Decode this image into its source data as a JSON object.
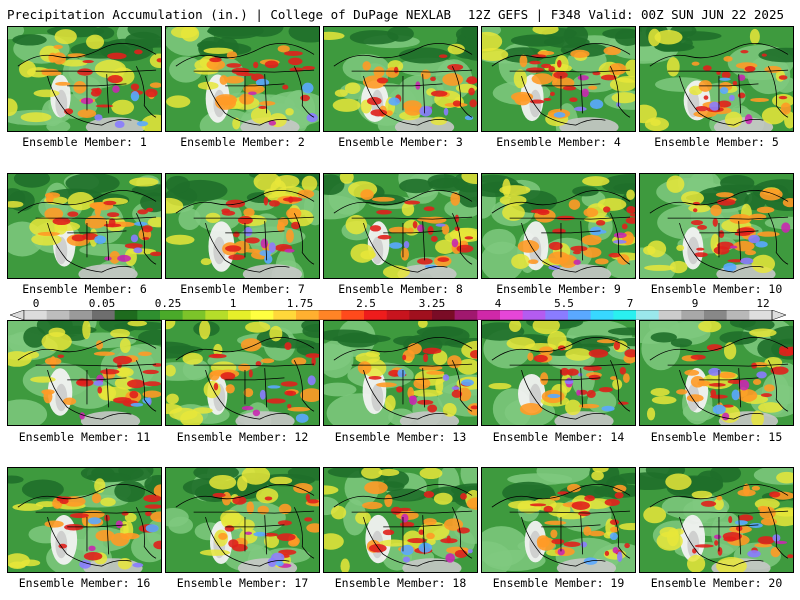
{
  "header": {
    "title": "Precipitation Accumulation (in.) | College of DuPage NEXLAB",
    "run_info": "12Z GEFS | F348 Valid: 00Z SUN JUN 22 2025"
  },
  "panels": [
    {
      "member": 1,
      "label": "Ensemble Member: 1"
    },
    {
      "member": 2,
      "label": "Ensemble Member: 2"
    },
    {
      "member": 3,
      "label": "Ensemble Member: 3"
    },
    {
      "member": 4,
      "label": "Ensemble Member: 4"
    },
    {
      "member": 5,
      "label": "Ensemble Member: 5"
    },
    {
      "member": 6,
      "label": "Ensemble Member: 6"
    },
    {
      "member": 7,
      "label": "Ensemble Member: 7"
    },
    {
      "member": 8,
      "label": "Ensemble Member: 8"
    },
    {
      "member": 9,
      "label": "Ensemble Member: 9"
    },
    {
      "member": 10,
      "label": "Ensemble Member: 10"
    },
    {
      "member": 11,
      "label": "Ensemble Member: 11"
    },
    {
      "member": 12,
      "label": "Ensemble Member: 12"
    },
    {
      "member": 13,
      "label": "Ensemble Member: 13"
    },
    {
      "member": 14,
      "label": "Ensemble Member: 14"
    },
    {
      "member": 15,
      "label": "Ensemble Member: 15"
    },
    {
      "member": 16,
      "label": "Ensemble Member: 16"
    },
    {
      "member": 17,
      "label": "Ensemble Member: 17"
    },
    {
      "member": 18,
      "label": "Ensemble Member: 18"
    },
    {
      "member": 19,
      "label": "Ensemble Member: 19"
    },
    {
      "member": 20,
      "label": "Ensemble Member: 20"
    }
  ],
  "colorbar": {
    "labels": [
      "0",
      "0.05",
      "0.25",
      "1",
      "1.75",
      "2.5",
      "3.25",
      "4",
      "5.5",
      "7",
      "9",
      "12"
    ],
    "colors": [
      "#dcdcdc",
      "#bdbdbd",
      "#9a9a9a",
      "#6e6e6e",
      "#1e6b1e",
      "#2f8f2f",
      "#4aaa2a",
      "#7cc42a",
      "#b5dd2a",
      "#e6ef2a",
      "#ffff40",
      "#ffd83a",
      "#ffb030",
      "#ff8426",
      "#ff4a1c",
      "#ee1c1c",
      "#c8141e",
      "#a0101e",
      "#7a0c26",
      "#a0186e",
      "#d028a8",
      "#e646d8",
      "#b45cf0",
      "#8a7cff",
      "#5aa8ff",
      "#38d8ff",
      "#2af0f0",
      "#9ae8ec",
      "#cccccc",
      "#a8a8a8",
      "#888888",
      "#b8b8b8",
      "#dedede"
    ]
  },
  "palette": {
    "light": "#7fc97f",
    "mid": "#3e9a3e",
    "dark": "#1f6f2a",
    "yellow": "#e8e63a",
    "orange": "#ff9a26",
    "red": "#e0201c",
    "magenta": "#c828b0",
    "purple": "#8a7cff",
    "blue": "#5aa8ff",
    "gray": "#c8c8c8",
    "white": "#f2f2f2",
    "border": "#000000"
  }
}
